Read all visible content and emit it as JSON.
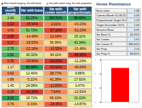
{
  "options": [
    {
      "label": "Next month target",
      "selected": true
    },
    {
      "label": "Var with base",
      "selected": false
    },
    {
      "label": "Var with comm month",
      "selected": false
    },
    {
      "label": "Var with proportionate",
      "selected": false
    }
  ],
  "table": {
    "header": [
      "Next month target",
      "Var with base",
      "Var with comm month",
      "Var with proportionate"
    ],
    "rows": [
      [
        "2.40",
        "62.25%",
        "385.50%",
        "86.65%"
      ],
      [
        "0.10",
        "-35.54%",
        "2.01%",
        "-43.23%"
      ],
      [
        "0.41",
        "51.73%",
        "-57.18%",
        "-52.23%"
      ],
      [
        "0.05",
        "-14.48%",
        "13.04%",
        "25.11%"
      ],
      [
        "0.17",
        "-18.53%",
        "95.99%",
        "43.34%"
      ],
      [
        "2.75",
        "-22.16%",
        "-16.55%",
        "-31.48%"
      ],
      [
        "2.91",
        "30.32%",
        "94.11%",
        "-86.95%"
      ],
      [
        "0.35",
        "-25.90%",
        "-64.23%",
        "-11.29%"
      ],
      [
        "1.17",
        "68.98%",
        "-55.62%",
        "-46.64%"
      ],
      [
        "0.62",
        "12.40%",
        "28.77%",
        "9.58%"
      ],
      [
        "0.88",
        "-5.21%",
        "41.36%",
        "17.92%"
      ],
      [
        "1.45",
        "24.06%",
        "-12.83%",
        "3.47%"
      ],
      [
        "0.29",
        "-41.15%",
        "7.64%",
        "-22.51%"
      ],
      [
        "3.10",
        "18.72%",
        "66.10%",
        "31.02%"
      ],
      [
        "0.76",
        "-9.33%",
        "-28.45%",
        "-14.87%"
      ]
    ]
  },
  "panel": {
    "title": "Home Remittance",
    "rows": [
      [
        "Base value",
        "1.48"
      ],
      [
        "Commu Month 31.08.2013",
        "0.49"
      ],
      [
        "Proportionate Target 31.08.2013",
        "1.29"
      ],
      [
        "Target December 2013",
        "2.40"
      ],
      [
        "Variance Base",
        "0.92"
      ],
      [
        "Var Base %",
        "62.25%"
      ],
      [
        "Var Comm",
        "1.91"
      ],
      [
        "Var Comm %",
        "385.50%"
      ],
      [
        "Var Prop",
        "1.11"
      ],
      [
        "Var Prop %",
        "86.65%"
      ]
    ]
  },
  "chart_data": {
    "type": "bar",
    "categories": [
      "Home Remittance"
    ],
    "values": [
      2.4
    ],
    "color": "#ff0000",
    "ylim": [
      0,
      3
    ],
    "yticks": [
      0,
      1,
      2,
      3
    ],
    "grid": false
  }
}
